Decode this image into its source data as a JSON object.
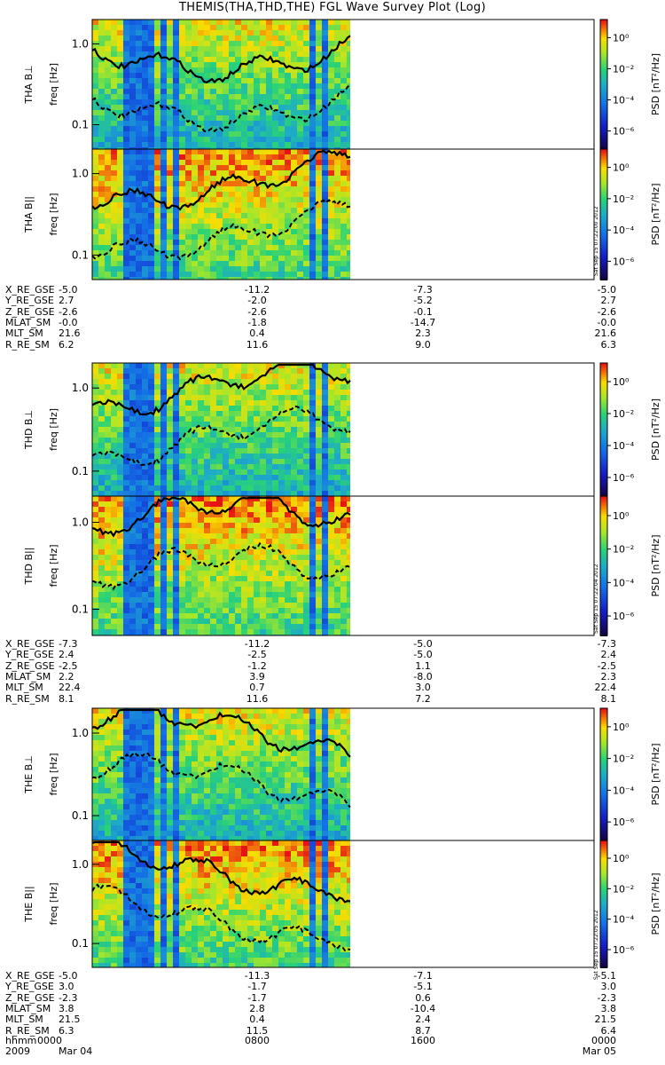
{
  "title": "THEMIS(THA,THD,THE) FGL Wave Survey Plot (Log)",
  "chart_data": {
    "type": "heatmap",
    "x_axis": {
      "label": "hhmm",
      "year": "2009",
      "ticks": [
        "0000",
        "0800",
        "1600",
        "0000"
      ],
      "dates": [
        "Mar 04",
        "",
        "",
        "Mar 05"
      ],
      "data_end_hhmm": "1200"
    },
    "y_axis": {
      "scale": "log",
      "label": "freq [Hz]",
      "ticks": [
        "0.1",
        "1.0"
      ],
      "range": [
        0.05,
        2.0
      ]
    },
    "colorbar": {
      "label": "PSD [nT²/Hz]",
      "scale": "log",
      "ticks": [
        "10⁰",
        "10⁻²",
        "10⁻⁴",
        "10⁻⁶"
      ],
      "range": [
        1e-07,
        10
      ]
    },
    "panels": [
      {
        "probe": "THA",
        "label": "THA B⊥"
      },
      {
        "probe": "THA",
        "label": "THA B||"
      },
      {
        "probe": "THD",
        "label": "THD B⊥"
      },
      {
        "probe": "THD",
        "label": "THD B||"
      },
      {
        "probe": "THE",
        "label": "THE B⊥"
      },
      {
        "probe": "THE",
        "label": "THE B||"
      }
    ],
    "ephemeris": [
      {
        "probe": "THA",
        "rows": [
          {
            "label": "X_RE_GSE",
            "values": [
              "-5.0",
              "-11.2",
              "-7.3",
              "-5.0"
            ]
          },
          {
            "label": "Y_RE_GSE",
            "values": [
              "2.7",
              "-2.0",
              "-5.2",
              "2.7"
            ]
          },
          {
            "label": "Z_RE_GSE",
            "values": [
              "-2.6",
              "-2.6",
              "-0.1",
              "-2.6"
            ]
          },
          {
            "label": "MLAT_SM",
            "values": [
              "-0.0",
              "-1.8",
              "-14.7",
              "-0.0"
            ]
          },
          {
            "label": "MLT_SM",
            "values": [
              "21.6",
              "0.4",
              "2.3",
              "21.6"
            ]
          },
          {
            "label": "R_RE_SM",
            "values": [
              "6.2",
              "11.6",
              "9.0",
              "6.3"
            ]
          }
        ]
      },
      {
        "probe": "THD",
        "rows": [
          {
            "label": "X_RE_GSE",
            "values": [
              "-7.3",
              "-11.2",
              "-5.0",
              "-7.3"
            ]
          },
          {
            "label": "Y_RE_GSE",
            "values": [
              "2.4",
              "-2.5",
              "-5.0",
              "2.4"
            ]
          },
          {
            "label": "Z_RE_GSE",
            "values": [
              "-2.5",
              "-1.2",
              "1.1",
              "-2.5"
            ]
          },
          {
            "label": "MLAT_SM",
            "values": [
              "2.2",
              "3.9",
              "-8.0",
              "2.3"
            ]
          },
          {
            "label": "MLT_SM",
            "values": [
              "22.4",
              "0.7",
              "3.0",
              "22.4"
            ]
          },
          {
            "label": "R_RE_SM",
            "values": [
              "8.1",
              "11.6",
              "7.2",
              "8.1"
            ]
          }
        ]
      },
      {
        "probe": "THE",
        "rows": [
          {
            "label": "X_RE_GSE",
            "values": [
              "-5.0",
              "-11.3",
              "-7.1",
              "-5.1"
            ]
          },
          {
            "label": "Y_RE_GSE",
            "values": [
              "3.0",
              "-1.7",
              "-5.1",
              "3.0"
            ]
          },
          {
            "label": "Z_RE_GSE",
            "values": [
              "-2.3",
              "-1.7",
              "0.6",
              "-2.3"
            ]
          },
          {
            "label": "MLAT_SM",
            "values": [
              "3.8",
              "2.8",
              "-10.4",
              "3.8"
            ]
          },
          {
            "label": "MLT_SM",
            "values": [
              "21.5",
              "0.4",
              "2.4",
              "21.5"
            ]
          },
          {
            "label": "R_RE_SM",
            "values": [
              "6.3",
              "11.5",
              "8.7",
              "6.4"
            ]
          }
        ]
      }
    ]
  },
  "stamps": [
    "Sat Sep 15 07:22:00 2012",
    "Sat Sep 15 07:22:04 2012",
    "Sat Sep 15 07:22:05 2012"
  ],
  "colors": {
    "background": "#ffffff",
    "ink": "#000000"
  }
}
